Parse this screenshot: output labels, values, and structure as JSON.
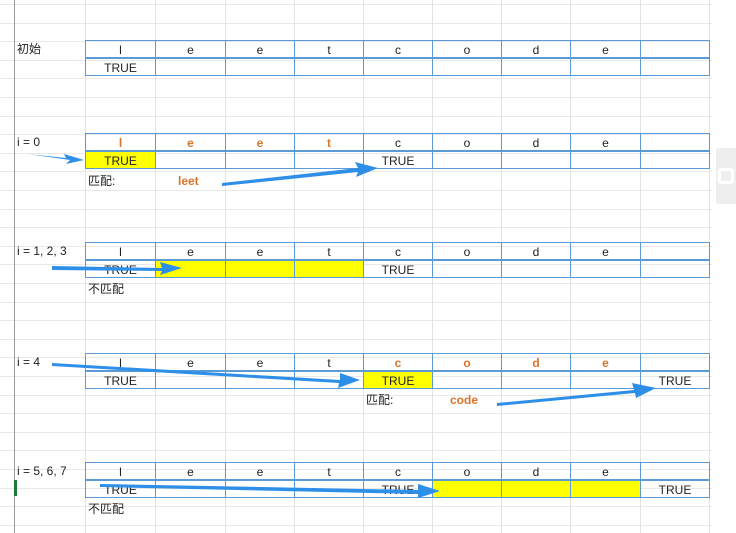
{
  "sections": [
    {
      "label": "初始",
      "letters": [
        "l",
        "e",
        "e",
        "t",
        "c",
        "o",
        "d",
        "e",
        ""
      ],
      "letter_highlight": [
        false,
        false,
        false,
        false,
        false,
        false,
        false,
        false,
        false
      ],
      "row2": [
        "TRUE",
        "",
        "",
        "",
        "",
        "",
        "",
        "",
        ""
      ],
      "row2_yellow": [
        false,
        false,
        false,
        false,
        false,
        false,
        false,
        false,
        false
      ],
      "note_label": "",
      "note_word": ""
    },
    {
      "label": "i = 0",
      "letters": [
        "l",
        "e",
        "e",
        "t",
        "c",
        "o",
        "d",
        "e",
        ""
      ],
      "letter_highlight": [
        true,
        true,
        true,
        true,
        false,
        false,
        false,
        false,
        false
      ],
      "row2": [
        "TRUE",
        "",
        "",
        "",
        "TRUE",
        "",
        "",
        "",
        ""
      ],
      "row2_yellow": [
        true,
        false,
        false,
        false,
        false,
        false,
        false,
        false,
        false
      ],
      "note_label": "匹配:",
      "note_word": "leet"
    },
    {
      "label": "i = 1, 2, 3",
      "letters": [
        "l",
        "e",
        "e",
        "t",
        "c",
        "o",
        "d",
        "e",
        ""
      ],
      "letter_highlight": [
        false,
        false,
        false,
        false,
        false,
        false,
        false,
        false,
        false
      ],
      "row2": [
        "TRUE",
        "",
        "",
        "",
        "TRUE",
        "",
        "",
        "",
        ""
      ],
      "row2_yellow": [
        false,
        true,
        true,
        true,
        false,
        false,
        false,
        false,
        false
      ],
      "note_label": "不匹配",
      "note_word": ""
    },
    {
      "label": "i = 4",
      "letters": [
        "l",
        "e",
        "e",
        "t",
        "c",
        "o",
        "d",
        "e",
        ""
      ],
      "letter_highlight": [
        false,
        false,
        false,
        false,
        true,
        true,
        true,
        true,
        false
      ],
      "row2": [
        "TRUE",
        "",
        "",
        "",
        "TRUE",
        "",
        "",
        "",
        "TRUE"
      ],
      "row2_yellow": [
        false,
        false,
        false,
        false,
        true,
        false,
        false,
        false,
        false
      ],
      "note_label": "匹配:",
      "note_word": "code"
    },
    {
      "label": "i = 5, 6, 7",
      "letters": [
        "l",
        "e",
        "e",
        "t",
        "c",
        "o",
        "d",
        "e",
        ""
      ],
      "letter_highlight": [
        false,
        false,
        false,
        false,
        false,
        false,
        false,
        false,
        false
      ],
      "row2": [
        "TRUE",
        "",
        "",
        "",
        "TRUE",
        "",
        "",
        "",
        "TRUE"
      ],
      "row2_yellow": [
        false,
        false,
        false,
        false,
        false,
        true,
        true,
        true,
        false
      ],
      "note_label": "不匹配",
      "note_word": ""
    }
  ],
  "colors": {
    "border": "#5b9bd5",
    "highlight": "#ffff00",
    "match_text": "#d8742c",
    "arrow": "#2e8fe8",
    "gridline": "#e3e3e3"
  }
}
